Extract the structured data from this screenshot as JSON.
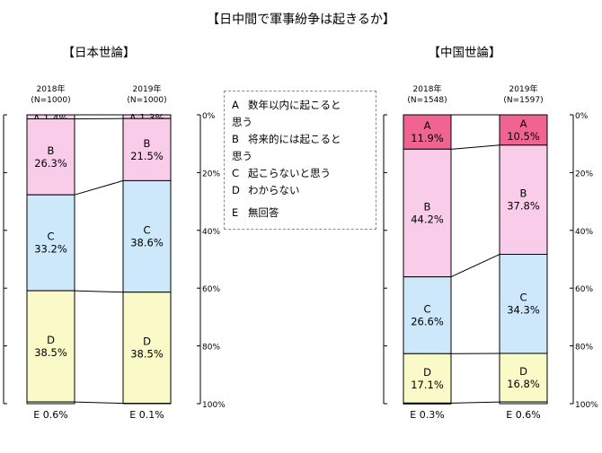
{
  "chart_data": [
    {
      "type": "bar",
      "stacked": true,
      "title": "【日中間で軍事紛争は起きるか】",
      "subtitle": "【日本世論】",
      "categories": [
        "2018年\n(N=1000)",
        "2019年\n(N=1000)"
      ],
      "series": [
        {
          "name": "A",
          "values": [
            1.4,
            1.3
          ],
          "color": "#f9cde9"
        },
        {
          "name": "B",
          "values": [
            26.3,
            21.5
          ],
          "color": "#f9cde9"
        },
        {
          "name": "C",
          "values": [
            33.2,
            38.6
          ],
          "color": "#cce8fa"
        },
        {
          "name": "D",
          "values": [
            38.5,
            38.5
          ],
          "color": "#fafac8"
        },
        {
          "name": "E",
          "values": [
            0.6,
            0.1
          ],
          "color": "#ffffff"
        }
      ],
      "ylim": [
        0,
        100
      ],
      "yticks": [
        "0%",
        "20%",
        "40%",
        "60%",
        "80%",
        "100%"
      ],
      "bar_labels": [
        [
          "A 1.4%",
          "B\n26.3%",
          "C\n33.2%",
          "D\n38.5%",
          "E 0.6%"
        ],
        [
          "A 1.3%",
          "B\n21.5%",
          "C\n38.6%",
          "D\n38.5%",
          "E 0.1%"
        ]
      ]
    },
    {
      "type": "bar",
      "stacked": true,
      "subtitle": "【中国世論】",
      "categories": [
        "2018年\n(N=1548)",
        "2019年\n(N=1597)"
      ],
      "series": [
        {
          "name": "A",
          "values": [
            11.9,
            10.5
          ],
          "color": "#f06492"
        },
        {
          "name": "B",
          "values": [
            44.2,
            37.8
          ],
          "color": "#f9cde9"
        },
        {
          "name": "C",
          "values": [
            26.6,
            34.3
          ],
          "color": "#cce8fa"
        },
        {
          "name": "D",
          "values": [
            17.1,
            16.8
          ],
          "color": "#fafac8"
        },
        {
          "name": "E",
          "values": [
            0.3,
            0.6
          ],
          "color": "#ffffff"
        }
      ],
      "ylim": [
        0,
        100
      ],
      "yticks": [
        "0%",
        "20%",
        "40%",
        "60%",
        "80%",
        "100%"
      ],
      "bar_labels": [
        [
          "A\n11.9%",
          "B\n44.2%",
          "C\n26.6%",
          "D\n17.1%",
          "E 0.3%"
        ],
        [
          "A\n10.5%",
          "B\n37.8%",
          "C\n34.3%",
          "D\n16.8%",
          "E 0.6%"
        ]
      ]
    }
  ],
  "legend": [
    {
      "key": "A",
      "text": "数年以内に起こると"
    },
    {
      "key": "",
      "text": "思う"
    },
    {
      "key": "B",
      "text": "将来的には起こると"
    },
    {
      "key": "",
      "text": "思う"
    },
    {
      "key": "C",
      "text": "起こらないと思う"
    },
    {
      "key": "D",
      "text": "わからない"
    },
    {
      "key": "E",
      "text": "無回答"
    }
  ]
}
